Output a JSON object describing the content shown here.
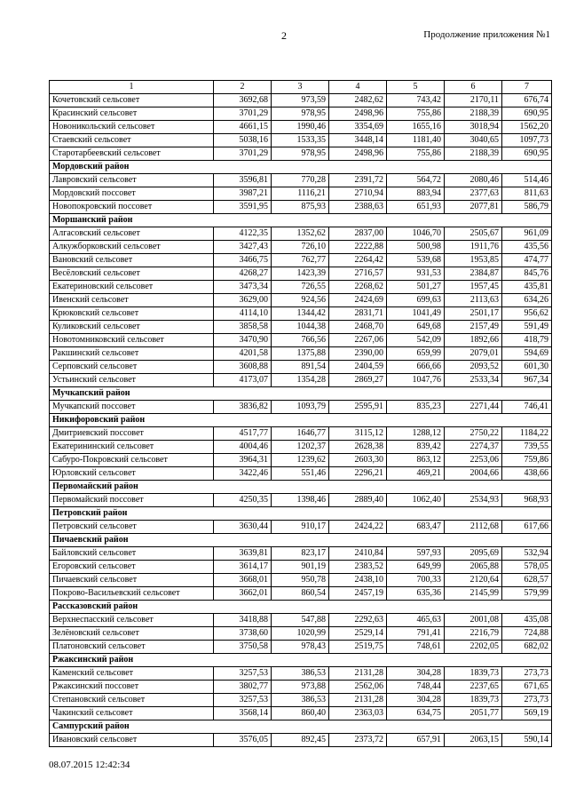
{
  "page": {
    "number": "2",
    "header_right": "Продолжение приложения №1",
    "footer_timestamp": "08.07.2015 12:42:34"
  },
  "table": {
    "column_numbers": [
      "1",
      "2",
      "3",
      "4",
      "5",
      "6",
      "7"
    ],
    "rows": [
      {
        "type": "data",
        "name": "Кочетовский сельсовет",
        "values": [
          "3692,68",
          "973,59",
          "2482,62",
          "743,42",
          "2170,11",
          "676,74"
        ]
      },
      {
        "type": "data",
        "name": "Красинский сельсовет",
        "values": [
          "3701,29",
          "978,95",
          "2498,96",
          "755,86",
          "2188,39",
          "690,95"
        ]
      },
      {
        "type": "data",
        "name": "Новоникольский сельсовет",
        "values": [
          "4661,15",
          "1990,46",
          "3354,69",
          "1655,16",
          "3018,94",
          "1562,20"
        ]
      },
      {
        "type": "data",
        "name": "Стаевский  сельсовет",
        "values": [
          "5038,16",
          "1533,35",
          "3448,14",
          "1181,40",
          "3040,65",
          "1097,73"
        ]
      },
      {
        "type": "data",
        "name": "Старотарбеевский сельсовет",
        "values": [
          "3701,29",
          "978,95",
          "2498,96",
          "755,86",
          "2188,39",
          "690,95"
        ]
      },
      {
        "type": "section",
        "name": "Мордовский район"
      },
      {
        "type": "data",
        "name": "Лавровский сельсовет",
        "values": [
          "3596,81",
          "770,28",
          "2391,72",
          "564,72",
          "2080,46",
          "514,46"
        ]
      },
      {
        "type": "data",
        "name": "Мордовский поссовет",
        "values": [
          "3987,21",
          "1116,21",
          "2710,94",
          "883,94",
          "2377,63",
          "811,63"
        ]
      },
      {
        "type": "data",
        "name": "Новопокровский поссовет",
        "values": [
          "3591,95",
          "875,93",
          "2388,63",
          "651,93",
          "2077,81",
          "586,79"
        ]
      },
      {
        "type": "section",
        "name": "Моршанский район"
      },
      {
        "type": "data",
        "name": "Алгасовский сельсовет",
        "values": [
          "4122,35",
          "1352,62",
          "2837,00",
          "1046,70",
          "2505,67",
          "961,09"
        ]
      },
      {
        "type": "data",
        "name": "Алкужборковский сельсовет",
        "values": [
          "3427,43",
          "726,10",
          "2222,88",
          "500,98",
          "1911,76",
          "435,56"
        ]
      },
      {
        "type": "data",
        "name": "Вановский сельсовет",
        "values": [
          "3466,75",
          "762,77",
          "2264,42",
          "539,68",
          "1953,85",
          "474,77"
        ]
      },
      {
        "type": "data",
        "name": "Весёловский сельсовет",
        "values": [
          "4268,27",
          "1423,39",
          "2716,57",
          "931,53",
          "2384,87",
          "845,76"
        ]
      },
      {
        "type": "data",
        "name": "Екатериновский сельсовет",
        "values": [
          "3473,34",
          "726,55",
          "2268,62",
          "501,27",
          "1957,45",
          "435,81"
        ]
      },
      {
        "type": "data",
        "name": "Ивенский сельсовет",
        "values": [
          "3629,00",
          "924,56",
          "2424,69",
          "699,63",
          "2113,63",
          "634,26"
        ]
      },
      {
        "type": "data",
        "name": "Крюковский сельсовет",
        "values": [
          "4114,10",
          "1344,42",
          "2831,71",
          "1041,49",
          "2501,17",
          "956,62"
        ]
      },
      {
        "type": "data",
        "name": "Куликовский сельсовет",
        "values": [
          "3858,58",
          "1044,38",
          "2468,70",
          "649,68",
          "2157,49",
          "591,49"
        ]
      },
      {
        "type": "data",
        "name": "Новотомниковский сельсовет",
        "values": [
          "3470,90",
          "766,56",
          "2267,06",
          "542,09",
          "1892,66",
          "418,79"
        ]
      },
      {
        "type": "data",
        "name": "Ракшинский сельсовет",
        "values": [
          "4201,58",
          "1375,88",
          "2390,00",
          "659,99",
          "2079,01",
          "594,69"
        ]
      },
      {
        "type": "data",
        "name": "Серповский сельсовет",
        "values": [
          "3608,88",
          "891,54",
          "2404,59",
          "666,66",
          "2093,52",
          "601,30"
        ]
      },
      {
        "type": "data",
        "name": "Устьинский сельсовет",
        "values": [
          "4173,07",
          "1354,28",
          "2869,27",
          "1047,76",
          "2533,34",
          "967,34"
        ]
      },
      {
        "type": "section",
        "name": "Мучкапский район"
      },
      {
        "type": "data",
        "name": "Мучкапский поссовет",
        "values": [
          "3836,82",
          "1093,79",
          "2595,91",
          "835,23",
          "2271,44",
          "746,41"
        ]
      },
      {
        "type": "section",
        "name": "Никифоровский район"
      },
      {
        "type": "data",
        "name": "Дмитриевский поссовет",
        "values": [
          "4517,77",
          "1646,77",
          "3115,12",
          "1288,12",
          "2750,22",
          "1184,22"
        ]
      },
      {
        "type": "data",
        "name": "Екатерининский сельсовет",
        "values": [
          "4004,46",
          "1202,37",
          "2628,38",
          "839,42",
          "2274,37",
          "739,55"
        ]
      },
      {
        "type": "data",
        "name": "Сабуро-Покровский сельсовет",
        "values": [
          "3964,31",
          "1239,62",
          "2603,30",
          "863,12",
          "2253,06",
          "759,86"
        ]
      },
      {
        "type": "data",
        "name": "Юрловский сельсовет",
        "values": [
          "3422,46",
          "551,46",
          "2296,21",
          "469,21",
          "2004,66",
          "438,66"
        ]
      },
      {
        "type": "section",
        "name": "Первомайский район"
      },
      {
        "type": "data",
        "name": "Первомайский поссовет",
        "values": [
          "4250,35",
          "1398,46",
          "2889,40",
          "1062,40",
          "2534,93",
          "968,93"
        ]
      },
      {
        "type": "section",
        "name": "Петровский район"
      },
      {
        "type": "data",
        "name": "Петровский сельсовет",
        "values": [
          "3630,44",
          "910,17",
          "2424,22",
          "683,47",
          "2112,68",
          "617,66"
        ]
      },
      {
        "type": "section",
        "name": "Пичаевский район"
      },
      {
        "type": "data",
        "name": "Байловский сельсовет",
        "values": [
          "3639,81",
          "823,17",
          "2410,84",
          "597,93",
          "2095,69",
          "532,94"
        ]
      },
      {
        "type": "data",
        "name": "Егоровский сельсовет",
        "values": [
          "3614,17",
          "901,19",
          "2383,52",
          "649,99",
          "2065,88",
          "578,05"
        ]
      },
      {
        "type": "data",
        "name": "Пичаевский сельсовет",
        "values": [
          "3668,01",
          "950,78",
          "2438,10",
          "700,33",
          "2120,64",
          "628,57"
        ]
      },
      {
        "type": "data",
        "name": "Покрово-Васильевский сельсовет",
        "values": [
          "3662,01",
          "860,54",
          "2457,19",
          "635,36",
          "2145,99",
          "579,99"
        ]
      },
      {
        "type": "section",
        "name": "Рассказовский район"
      },
      {
        "type": "data",
        "name": "Верхнеспасский сельсовет",
        "values": [
          "3418,88",
          "547,88",
          "2292,63",
          "465,63",
          "2001,08",
          "435,08"
        ]
      },
      {
        "type": "data",
        "name": "Зелёновский сельсовет",
        "values": [
          "3738,60",
          "1020,99",
          "2529,14",
          "791,41",
          "2216,79",
          "724,88"
        ]
      },
      {
        "type": "data",
        "name": "Платоновский сельсовет",
        "values": [
          "3750,58",
          "978,43",
          "2519,75",
          "748,61",
          "2202,05",
          "682,02"
        ]
      },
      {
        "type": "section",
        "name": "Ржаксинский район"
      },
      {
        "type": "data",
        "name": "Каменский сельсовет",
        "values": [
          "3257,53",
          "386,53",
          "2131,28",
          "304,28",
          "1839,73",
          "273,73"
        ]
      },
      {
        "type": "data",
        "name": "Ржаксинский поссовет",
        "values": [
          "3802,77",
          "973,88",
          "2562,06",
          "748,44",
          "2237,65",
          "671,65"
        ]
      },
      {
        "type": "data",
        "name": "Степановский сельсовет",
        "values": [
          "3257,53",
          "386,53",
          "2131,28",
          "304,28",
          "1839,73",
          "273,73"
        ]
      },
      {
        "type": "data",
        "name": "Чакинский сельсовет",
        "values": [
          "3568,14",
          "860,40",
          "2363,03",
          "634,75",
          "2051,77",
          "569,19"
        ]
      },
      {
        "type": "section",
        "name": "Сампурский район"
      },
      {
        "type": "data",
        "name": "Ивановский сельсовет",
        "values": [
          "3576,05",
          "892,45",
          "2373,72",
          "657,91",
          "2063,15",
          "590,14"
        ]
      }
    ]
  }
}
